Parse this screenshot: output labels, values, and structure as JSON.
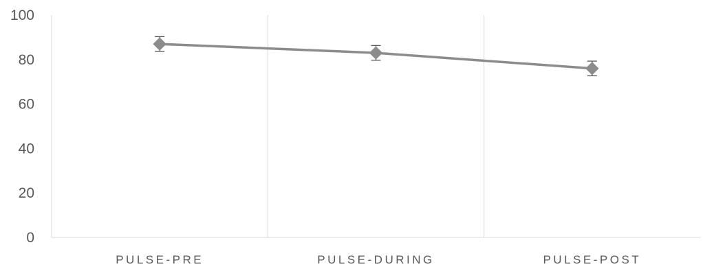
{
  "chart_data": {
    "type": "line",
    "title": "",
    "xlabel": "",
    "ylabel": "",
    "categories": [
      "PULSE-PRE",
      "PULSE-DURING",
      "PULSE-POST"
    ],
    "series": [
      {
        "values": [
          87,
          83,
          76
        ],
        "error": [
          3.3,
          3.3,
          3.3
        ]
      }
    ],
    "ylim": [
      0,
      100
    ],
    "yticks": [
      "0",
      "20",
      "40",
      "60",
      "80",
      "100"
    ],
    "grid": "vertical",
    "legend": "none",
    "colors": {
      "line": "#8c8c8c",
      "marker": "#8c8c8c",
      "errorbar": "#555555",
      "gridline": "#d9d9d9",
      "axis": "#d9d9d9",
      "text": "#595959"
    }
  }
}
